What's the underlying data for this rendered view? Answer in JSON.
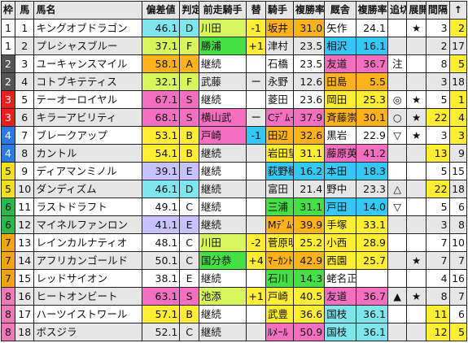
{
  "headers": [
    "枠",
    "馬",
    "馬名",
    "偏差値",
    "判定",
    "前走騎手",
    "替",
    "騎手",
    "複勝率",
    "厩舎",
    "複勝率",
    "追切",
    "展開",
    "間隔",
    "↑"
  ],
  "colors": {
    "cyan": "#7fe6ee",
    "lime": "#d8f55c",
    "pink": "#f56fc0",
    "orange": "#ffb21a",
    "blue": "#33c8f5",
    "yellow": "#ffee33",
    "lavender": "#c8c0ff",
    "green": "#44e044"
  },
  "rows": [
    {
      "waku": "1",
      "uma": "1",
      "name": "キングオブドラゴン",
      "score": "46.1",
      "grade": "D",
      "prev": "川田",
      "kae": "-1",
      "jockey": "坂井",
      "jr": "31.0",
      "trainer": "矢作",
      "tr": "24.1",
      "oikiri": "",
      "tenkai": "★",
      "kankaku": "3",
      "up": "2"
    },
    {
      "waku": "1",
      "uma": "2",
      "name": "プレシャスブルー",
      "score": "37.1",
      "grade": "F",
      "prev": "勝浦",
      "kae": "+1",
      "jockey": "津村",
      "jr": "23.5",
      "trainer": "相沢",
      "tr": "16.1",
      "oikiri": "",
      "tenkai": "",
      "kankaku": "2",
      "up": "17"
    },
    {
      "waku": "2",
      "uma": "3",
      "name": "ユーキャンスマイル",
      "score": "58.1",
      "grade": "A",
      "prev": "継続",
      "kae": "",
      "jockey": "石橋",
      "jr": "23.5",
      "trainer": "友道",
      "tr": "36.7",
      "oikiri": "注",
      "tenkai": "",
      "kankaku": "8",
      "up": "5"
    },
    {
      "waku": "2",
      "uma": "4",
      "name": "コトブキテティス",
      "score": "32.1",
      "grade": "F",
      "prev": "武藤",
      "kae": "ー",
      "jockey": "永野",
      "jr": "12.6",
      "trainer": "田島",
      "tr": "5.5",
      "oikiri": "",
      "tenkai": "",
      "kankaku": "3",
      "up": "18"
    },
    {
      "waku": "3",
      "uma": "5",
      "name": "テーオーロイヤル",
      "score": "67.1",
      "grade": "S",
      "prev": "継続",
      "kae": "",
      "jockey": "菱田",
      "jr": "23.6",
      "trainer": "岡田",
      "tr": "25.3",
      "oikiri": "◎",
      "tenkai": "★",
      "kankaku": "5",
      "up": "1"
    },
    {
      "waku": "3",
      "uma": "6",
      "name": "キラーアビリティ",
      "score": "68.1",
      "grade": "S",
      "prev": "横山武",
      "kae": "ー",
      "jockey": "Cﾃﾞﾑｰﾛ",
      "jr": "37.9",
      "trainer": "斉藤崇",
      "tr": "30.1",
      "oikiri": "○",
      "tenkai": "★",
      "kankaku": "22",
      "up": "4"
    },
    {
      "waku": "4",
      "uma": "7",
      "name": "ブレークアップ",
      "score": "53.1",
      "grade": "B",
      "prev": "戸崎",
      "kae": "-1",
      "jockey": "田辺",
      "jr": "32.6",
      "trainer": "黒岩",
      "tr": "22.9",
      "oikiri": "▽",
      "tenkai": "★",
      "kankaku": "3",
      "up": "3"
    },
    {
      "waku": "4",
      "uma": "8",
      "name": "カントル",
      "score": "54.1",
      "grade": "B",
      "prev": "継続",
      "kae": "",
      "jockey": "岩田望",
      "jr": "31.1",
      "trainer": "藤原英",
      "tr": "41.2",
      "oikiri": "",
      "tenkai": "",
      "kankaku": "13",
      "up": "9"
    },
    {
      "waku": "5",
      "uma": "9",
      "name": "ディアマンミノル",
      "score": "39.1",
      "grade": "E",
      "prev": "継続",
      "kae": "",
      "jockey": "荻野極",
      "jr": "16.2",
      "trainer": "本田",
      "tr": "18.3",
      "oikiri": "",
      "tenkai": "",
      "kankaku": "5",
      "up": "15"
    },
    {
      "waku": "5",
      "uma": "10",
      "name": "ダンディズム",
      "score": "46.1",
      "grade": "D",
      "prev": "継続",
      "kae": "",
      "jockey": "富田",
      "jr": "21.4",
      "trainer": "野中",
      "tr": "23.3",
      "oikiri": "△",
      "tenkai": "",
      "kankaku": "22",
      "up": "18"
    },
    {
      "waku": "6",
      "uma": "11",
      "name": "ラストドラフト",
      "score": "49.1",
      "grade": "C",
      "prev": "継続",
      "kae": "",
      "jockey": "三浦",
      "jr": "31.1",
      "trainer": "戸田",
      "tr": "14.0",
      "oikiri": "▽",
      "tenkai": "",
      "kankaku": "5",
      "up": "6"
    },
    {
      "waku": "6",
      "uma": "12",
      "name": "マイネルファンロン",
      "score": "41.1",
      "grade": "E",
      "prev": "継続",
      "kae": "",
      "jockey": "Mﾃﾞﾑｰﾛ",
      "jr": "39.9",
      "trainer": "手塚",
      "tr": "33.1",
      "oikiri": "",
      "tenkai": "",
      "kankaku": "3",
      "up": "8"
    },
    {
      "waku": "7",
      "uma": "13",
      "name": "レインカルナティオ",
      "score": "48.1",
      "grade": "C",
      "prev": "川田",
      "kae": "-2",
      "jockey": "菅原明",
      "jr": "25.2",
      "trainer": "小西",
      "tr": "28.9",
      "oikiri": "",
      "tenkai": "",
      "kankaku": "7",
      "up": "10"
    },
    {
      "waku": "7",
      "uma": "14",
      "name": "アフリカンゴールド",
      "score": "50.1",
      "grade": "C",
      "prev": "国分恭",
      "kae": "+4",
      "jockey": "ﾏｰｶﾝﾄﾞ",
      "jr": "42.9",
      "trainer": "西園",
      "tr": "25.7",
      "oikiri": "",
      "tenkai": "★",
      "kankaku": "7",
      "up": "7"
    },
    {
      "waku": "7",
      "uma": "15",
      "name": "レッドサイオン",
      "score": "38.1",
      "grade": "E",
      "prev": "継続",
      "kae": "",
      "jockey": "石川",
      "jr": "14.3",
      "trainer": "蛯名正",
      "tr": "",
      "oikiri": "",
      "tenkai": "",
      "kankaku": "4",
      "up": "16"
    },
    {
      "waku": "8",
      "uma": "16",
      "name": "ヒートオンビート",
      "score": "63.1",
      "grade": "S",
      "prev": "池添",
      "kae": "+1",
      "jockey": "戸崎",
      "jr": "40.5",
      "trainer": "友道",
      "tr": "36.7",
      "oikiri": "▲",
      "tenkai": "★",
      "kankaku": "8",
      "up": "7"
    },
    {
      "waku": "8",
      "uma": "17",
      "name": "ハーツイストワール",
      "score": "57.1",
      "grade": "B",
      "prev": "継続",
      "kae": "",
      "jockey": "武豊",
      "jr": "36.6",
      "trainer": "国枝",
      "tr": "36.1",
      "oikiri": "",
      "tenkai": "",
      "kankaku": "11",
      "up": "6"
    },
    {
      "waku": "8",
      "uma": "18",
      "name": "ボスジラ",
      "score": "52.1",
      "grade": "C",
      "prev": "継続",
      "kae": "",
      "jockey": "ﾙﾒｰﾙ",
      "jr": "50.9",
      "trainer": "国枝",
      "tr": "36.1",
      "oikiri": "",
      "tenkai": "",
      "kankaku": "12",
      "up": "5"
    }
  ]
}
